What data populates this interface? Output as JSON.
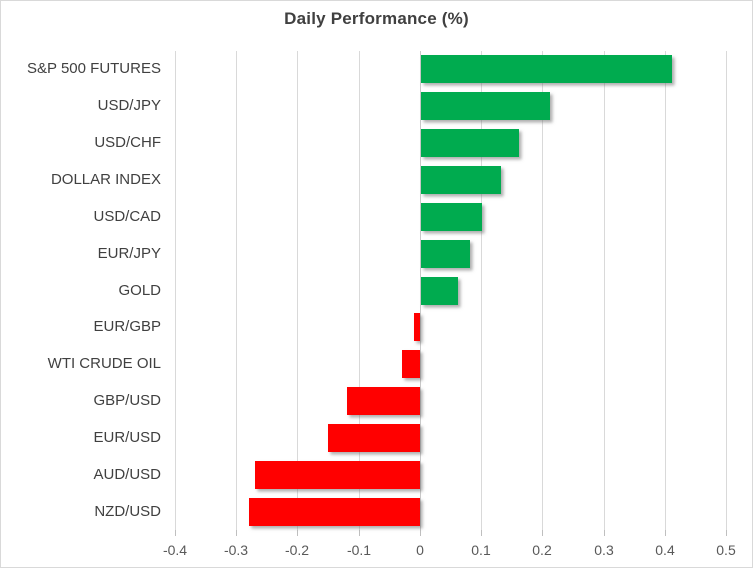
{
  "title": "Daily Performance (%)",
  "colors": {
    "positive_bar": "#00AB4F",
    "negative_bar": "#FF0000",
    "gridline": "#D9D9D9",
    "axis_line": "#C9C9C9",
    "title_text": "#404040",
    "category_text": "#404040",
    "tick_text": "#595959",
    "frame_border": "#D9D9D9"
  },
  "chart_data": {
    "type": "bar",
    "orientation": "horizontal",
    "title": "Daily Performance (%)",
    "categories": [
      "S&P 500 FUTURES",
      "USD/JPY",
      "USD/CHF",
      "DOLLAR INDEX",
      "USD/CAD",
      "EUR/JPY",
      "GOLD",
      "EUR/GBP",
      "WTI CRUDE OIL",
      "GBP/USD",
      "EUR/USD",
      "AUD/USD",
      "NZD/USD"
    ],
    "values": [
      0.41,
      0.21,
      0.16,
      0.13,
      0.1,
      0.08,
      0.06,
      -0.01,
      -0.03,
      -0.12,
      -0.15,
      -0.27,
      -0.28
    ],
    "xlabel": "",
    "ylabel": "",
    "xlim": [
      -0.4,
      0.5
    ],
    "xticks": [
      -0.4,
      -0.3,
      -0.2,
      -0.1,
      0,
      0.1,
      0.2,
      0.3,
      0.4,
      0.5
    ],
    "xtick_labels": [
      "-0.4",
      "-0.3",
      "-0.2",
      "-0.1",
      "0",
      "0.1",
      "0.2",
      "0.3",
      "0.4",
      "0.5"
    ],
    "grid": true,
    "legend": false
  }
}
